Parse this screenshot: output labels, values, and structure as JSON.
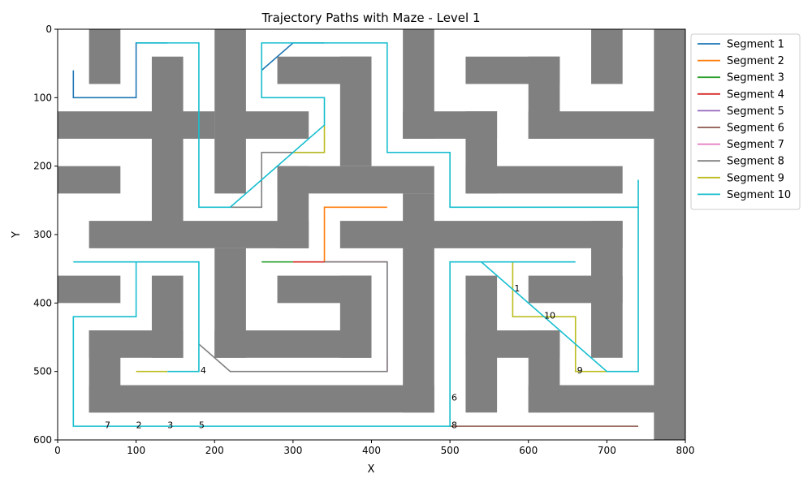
{
  "chart_data": {
    "type": "line",
    "title": "Trajectory Paths with Maze - Level 1",
    "xlabel": "X",
    "ylabel": "Y",
    "xlim": [
      0,
      800
    ],
    "ylim": [
      600,
      0
    ],
    "y_inverted": true,
    "xticks": [
      0,
      100,
      200,
      300,
      400,
      500,
      600,
      700,
      800
    ],
    "yticks": [
      0,
      100,
      200,
      300,
      400,
      500,
      600
    ],
    "grid": false,
    "legend_position": "outside-right-top",
    "wall_color": "#808080",
    "walls": [
      {
        "x0": 40,
        "x1": 80,
        "y0": 0,
        "y1": 80
      },
      {
        "x0": 0,
        "x1": 200,
        "y0": 120,
        "y1": 160
      },
      {
        "x0": 120,
        "x1": 160,
        "y0": 40,
        "y1": 300
      },
      {
        "x0": 0,
        "x1": 80,
        "y0": 200,
        "y1": 240
      },
      {
        "x0": 200,
        "x1": 240,
        "y0": 0,
        "y1": 240
      },
      {
        "x0": 200,
        "x1": 320,
        "y0": 120,
        "y1": 160
      },
      {
        "x0": 280,
        "x1": 400,
        "y0": 40,
        "y1": 80
      },
      {
        "x0": 360,
        "x1": 400,
        "y0": 40,
        "y1": 200
      },
      {
        "x0": 280,
        "x1": 480,
        "y0": 200,
        "y1": 240
      },
      {
        "x0": 280,
        "x1": 320,
        "y0": 200,
        "y1": 320
      },
      {
        "x0": 40,
        "x1": 320,
        "y0": 280,
        "y1": 320
      },
      {
        "x0": 440,
        "x1": 480,
        "y0": 0,
        "y1": 160
      },
      {
        "x0": 440,
        "x1": 560,
        "y0": 120,
        "y1": 160
      },
      {
        "x0": 520,
        "x1": 560,
        "y0": 120,
        "y1": 240
      },
      {
        "x0": 520,
        "x1": 720,
        "y0": 200,
        "y1": 240
      },
      {
        "x0": 520,
        "x1": 640,
        "y0": 40,
        "y1": 80
      },
      {
        "x0": 600,
        "x1": 640,
        "y0": 40,
        "y1": 160
      },
      {
        "x0": 600,
        "x1": 800,
        "y0": 120,
        "y1": 160
      },
      {
        "x0": 680,
        "x1": 720,
        "y0": 0,
        "y1": 80
      },
      {
        "x0": 760,
        "x1": 800,
        "y0": 0,
        "y1": 600
      },
      {
        "x0": 360,
        "x1": 720,
        "y0": 280,
        "y1": 320
      },
      {
        "x0": 440,
        "x1": 480,
        "y0": 240,
        "y1": 560
      },
      {
        "x0": 200,
        "x1": 240,
        "y0": 320,
        "y1": 480
      },
      {
        "x0": 200,
        "x1": 400,
        "y0": 440,
        "y1": 480
      },
      {
        "x0": 360,
        "x1": 400,
        "y0": 360,
        "y1": 480
      },
      {
        "x0": 280,
        "x1": 400,
        "y0": 360,
        "y1": 400
      },
      {
        "x0": 0,
        "x1": 80,
        "y0": 360,
        "y1": 400
      },
      {
        "x0": 120,
        "x1": 160,
        "y0": 360,
        "y1": 480
      },
      {
        "x0": 40,
        "x1": 160,
        "y0": 440,
        "y1": 480
      },
      {
        "x0": 40,
        "x1": 80,
        "y0": 440,
        "y1": 560
      },
      {
        "x0": 40,
        "x1": 480,
        "y0": 520,
        "y1": 560
      },
      {
        "x0": 520,
        "x1": 560,
        "y0": 360,
        "y1": 560
      },
      {
        "x0": 520,
        "x1": 640,
        "y0": 440,
        "y1": 480
      },
      {
        "x0": 600,
        "x1": 640,
        "y0": 440,
        "y1": 560
      },
      {
        "x0": 600,
        "x1": 800,
        "y0": 520,
        "y1": 560
      },
      {
        "x0": 600,
        "x1": 720,
        "y0": 360,
        "y1": 400
      },
      {
        "x0": 680,
        "x1": 720,
        "y0": 280,
        "y1": 480
      }
    ],
    "series": [
      {
        "name": "Segment 1",
        "color": "#1f77b4",
        "points": [
          [
            20,
            60
          ],
          [
            20,
            100
          ],
          [
            100,
            100
          ],
          [
            100,
            20
          ],
          [
            140,
            20
          ]
        ]
      },
      {
        "name": "Segment 1",
        "color": "#1f77b4",
        "points": [
          [
            260,
            60
          ],
          [
            300,
            20
          ],
          [
            340,
            20
          ]
        ]
      },
      {
        "name": "Segment 2",
        "color": "#ff7f0e",
        "points": [
          [
            420,
            260
          ],
          [
            340,
            260
          ],
          [
            340,
            340
          ]
        ]
      },
      {
        "name": "Segment 3",
        "color": "#2ca02c",
        "points": [
          [
            260,
            340
          ],
          [
            300,
            340
          ]
        ]
      },
      {
        "name": "Segment 4",
        "color": "#d62728",
        "points": [
          [
            300,
            340
          ],
          [
            420,
            340
          ]
        ]
      },
      {
        "name": "Segment 5",
        "color": "#9467bd",
        "points": [
          [
            420,
            340
          ],
          [
            420,
            500
          ]
        ]
      },
      {
        "name": "Segment 6",
        "color": "#8c564b",
        "points": [
          [
            500,
            580
          ],
          [
            740,
            580
          ]
        ]
      },
      {
        "name": "Segment 7",
        "color": "#e377c2",
        "points": [
          [
            420,
            480
          ],
          [
            420,
            500
          ]
        ]
      },
      {
        "name": "Segment 8",
        "color": "#7f7f7f",
        "points": [
          [
            180,
            460
          ],
          [
            220,
            500
          ],
          [
            420,
            500
          ],
          [
            420,
            340
          ],
          [
            340,
            340
          ]
        ]
      },
      {
        "name": "Segment 8",
        "color": "#7f7f7f",
        "points": [
          [
            220,
            260
          ],
          [
            260,
            260
          ],
          [
            260,
            180
          ],
          [
            340,
            180
          ]
        ]
      },
      {
        "name": "Segment 9",
        "color": "#bcbd22",
        "points": [
          [
            100,
            500
          ],
          [
            140,
            500
          ]
        ]
      },
      {
        "name": "Segment 9",
        "color": "#bcbd22",
        "points": [
          [
            300,
            180
          ],
          [
            340,
            180
          ],
          [
            340,
            140
          ]
        ]
      },
      {
        "name": "Segment 9",
        "color": "#bcbd22",
        "points": [
          [
            580,
            340
          ],
          [
            580,
            420
          ],
          [
            660,
            420
          ],
          [
            660,
            500
          ],
          [
            700,
            500
          ]
        ]
      },
      {
        "name": "Segment 10",
        "color": "#17becf",
        "points": [
          [
            140,
            500
          ],
          [
            180,
            500
          ],
          [
            180,
            340
          ],
          [
            20,
            340
          ]
        ]
      },
      {
        "name": "Segment 10",
        "color": "#17becf",
        "points": [
          [
            100,
            340
          ],
          [
            100,
            420
          ],
          [
            20,
            420
          ],
          [
            20,
            580
          ],
          [
            500,
            580
          ],
          [
            500,
            340
          ],
          [
            660,
            340
          ]
        ]
      },
      {
        "name": "Segment 10",
        "color": "#17becf",
        "points": [
          [
            540,
            340
          ],
          [
            700,
            500
          ],
          [
            740,
            500
          ],
          [
            740,
            220
          ]
        ]
      },
      {
        "name": "Segment 10",
        "color": "#17becf",
        "points": [
          [
            740,
            260
          ],
          [
            500,
            260
          ],
          [
            500,
            180
          ],
          [
            420,
            180
          ],
          [
            420,
            20
          ],
          [
            260,
            20
          ],
          [
            260,
            100
          ],
          [
            340,
            100
          ],
          [
            340,
            140
          ],
          [
            220,
            260
          ],
          [
            180,
            260
          ],
          [
            180,
            20
          ],
          [
            100,
            20
          ]
        ]
      }
    ],
    "legend": [
      {
        "name": "Segment 1",
        "color": "#1f77b4"
      },
      {
        "name": "Segment 2",
        "color": "#ff7f0e"
      },
      {
        "name": "Segment 3",
        "color": "#2ca02c"
      },
      {
        "name": "Segment 4",
        "color": "#d62728"
      },
      {
        "name": "Segment 5",
        "color": "#9467bd"
      },
      {
        "name": "Segment 6",
        "color": "#8c564b"
      },
      {
        "name": "Segment 7",
        "color": "#e377c2"
      },
      {
        "name": "Segment 8",
        "color": "#7f7f7f"
      },
      {
        "name": "Segment 9",
        "color": "#bcbd22"
      },
      {
        "name": "Segment 10",
        "color": "#17becf"
      }
    ],
    "annotations": [
      {
        "text": "1",
        "x": 582,
        "y": 378
      },
      {
        "text": "10",
        "x": 620,
        "y": 418
      },
      {
        "text": "9",
        "x": 662,
        "y": 498
      },
      {
        "text": "4",
        "x": 182,
        "y": 498
      },
      {
        "text": "6",
        "x": 502,
        "y": 538
      },
      {
        "text": "7",
        "x": 60,
        "y": 578
      },
      {
        "text": "2",
        "x": 100,
        "y": 578
      },
      {
        "text": "3",
        "x": 140,
        "y": 578
      },
      {
        "text": "5",
        "x": 180,
        "y": 578
      },
      {
        "text": "8",
        "x": 502,
        "y": 578
      }
    ]
  }
}
